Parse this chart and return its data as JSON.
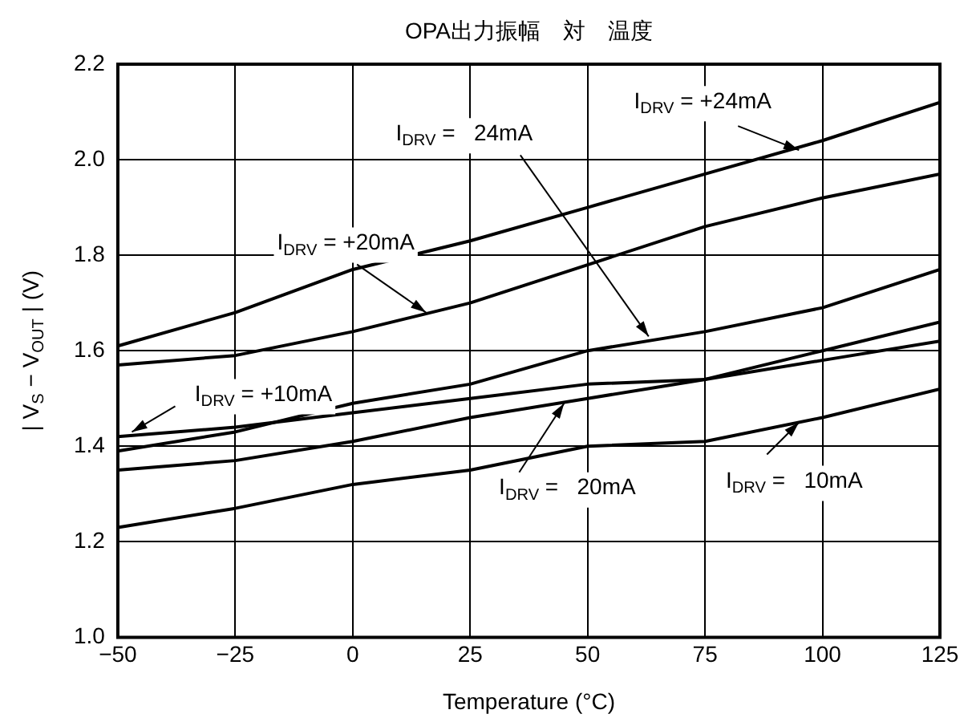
{
  "chart_data": {
    "type": "line",
    "title": "OPA出力振幅　対　温度",
    "xlabel": "Temperature (°C)",
    "ylabel": "| V$_{S}$ − V$_{OUT}$ | (V)",
    "x": [
      -50,
      -25,
      0,
      25,
      50,
      75,
      100,
      125
    ],
    "series": [
      {
        "color": "#000000",
        "values": [
          1.61,
          1.68,
          1.77,
          1.83,
          1.9,
          1.97,
          2.04,
          2.12
        ]
      },
      {
        "color": "#000000",
        "values": [
          1.57,
          1.59,
          1.64,
          1.7,
          1.78,
          1.86,
          1.92,
          1.97
        ]
      },
      {
        "color": "#000000",
        "values": [
          1.39,
          1.43,
          1.49,
          1.53,
          1.6,
          1.64,
          1.69,
          1.77
        ]
      },
      {
        "color": "#000000",
        "values": [
          1.42,
          1.44,
          1.47,
          1.5,
          1.53,
          1.54,
          1.6,
          1.66
        ]
      },
      {
        "color": "#000000",
        "values": [
          1.35,
          1.37,
          1.41,
          1.46,
          1.5,
          1.54,
          1.58,
          1.62
        ]
      },
      {
        "color": "#000000",
        "values": [
          1.23,
          1.27,
          1.32,
          1.35,
          1.4,
          1.41,
          1.46,
          1.52
        ]
      }
    ],
    "xlim": [
      -50,
      125
    ],
    "xticks": [
      {
        "value": -50,
        "label": "−50"
      },
      {
        "value": -25,
        "label": "−25"
      },
      0,
      25,
      50,
      75,
      100,
      125
    ],
    "ylim": [
      1.0,
      2.2
    ],
    "yticks": [
      {
        "value": 1.0,
        "label": "1.0"
      },
      1.2,
      1.4,
      1.6,
      1.8,
      {
        "value": 2.0,
        "label": "2.0"
      },
      2.2
    ],
    "grid": true,
    "legend": false,
    "marker": "none",
    "line_style": "solid",
    "annotations": [
      {
        "text": "I$_{DRV}$ = +24mA",
        "x": 95,
        "y": 2.02
      },
      {
        "text": "I$_{DRV}$ =   24mA",
        "x": 63,
        "y": 1.63
      },
      {
        "text": "I$_{DRV}$ = +20mA",
        "x": 15.6,
        "y": 1.68
      },
      {
        "text": "I$_{DRV}$ = +10mA",
        "x": -47,
        "y": 1.43
      },
      {
        "text": "I$_{DRV}$ =   20mA",
        "x": 45,
        "y": 1.49
      },
      {
        "text": "I$_{DRV}$ =   10mA",
        "x": 95,
        "y": 1.45
      }
    ]
  }
}
